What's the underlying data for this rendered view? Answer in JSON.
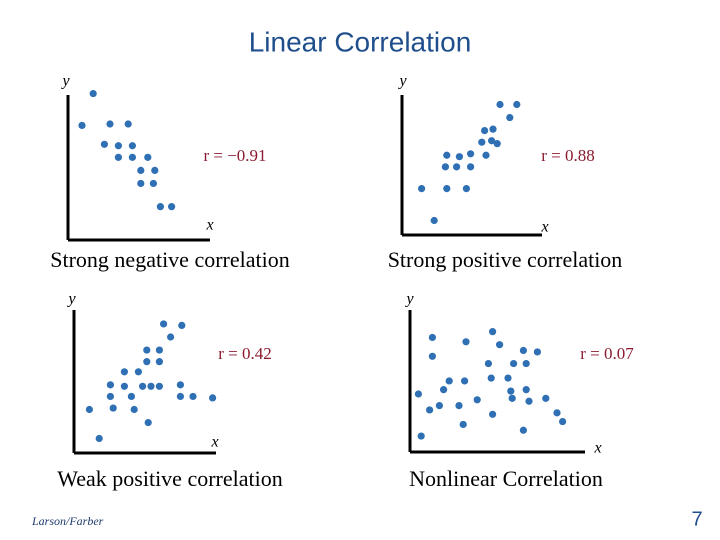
{
  "title": "Linear Correlation",
  "footer": "Larson/Farber",
  "page_number": "7",
  "chart_data": [
    {
      "type": "scatter",
      "title": "Strong negative correlation",
      "x_label": "x",
      "y_label": "y",
      "annotation": "r = −0.91",
      "color": "#2f6fb3",
      "xlim": [
        0,
        11
      ],
      "ylim": [
        0,
        11
      ],
      "x": [
        1.8,
        1.0,
        3.0,
        4.3,
        2.6,
        3.6,
        4.6,
        3.6,
        4.6,
        5.7,
        5.2,
        6.2,
        5.2,
        6.1,
        6.6,
        7.4
      ],
      "values": [
        10.1,
        7.9,
        8.0,
        8.0,
        6.6,
        6.5,
        6.5,
        5.7,
        5.7,
        5.7,
        4.8,
        4.8,
        3.9,
        3.9,
        2.3,
        2.3
      ]
    },
    {
      "type": "scatter",
      "title": "Strong positive correlation",
      "x_label": "x",
      "y_label": "y",
      "annotation": "r = 0.88",
      "color": "#2f6fb3",
      "xlim": [
        0,
        11
      ],
      "ylim": [
        0,
        11
      ],
      "x": [
        7.0,
        8.2,
        7.7,
        6.5,
        5.9,
        6.4,
        5.7,
        6.8,
        4.9,
        6.0,
        3.2,
        4.1,
        3.1,
        3.9,
        4.9,
        1.4,
        3.2,
        4.6,
        2.3
      ],
      "values": [
        9.0,
        9.0,
        8.1,
        7.3,
        7.2,
        6.5,
        6.4,
        6.3,
        5.6,
        5.5,
        5.5,
        5.4,
        4.7,
        4.7,
        4.7,
        3.2,
        3.2,
        3.2,
        1.0
      ]
    },
    {
      "type": "scatter",
      "title": "Weak positive correlation",
      "x_label": "x",
      "y_label": "y",
      "annotation": "r = 0.42",
      "color": "#2f6fb3",
      "xlim": [
        0,
        11
      ],
      "ylim": [
        0,
        11
      ],
      "x": [
        6.4,
        7.7,
        6.9,
        5.2,
        6.1,
        5.2,
        6.1,
        3.6,
        4.6,
        2.6,
        3.6,
        4.9,
        5.5,
        6.1,
        7.6,
        2.6,
        4.1,
        7.6,
        8.5,
        9.9,
        1.1,
        2.8,
        4.3,
        5.3,
        1.8
      ],
      "values": [
        8.9,
        8.8,
        8.0,
        7.1,
        7.1,
        6.3,
        6.3,
        5.6,
        5.6,
        4.7,
        4.6,
        4.6,
        4.6,
        4.6,
        4.7,
        3.9,
        3.9,
        3.9,
        3.9,
        3.8,
        3.0,
        3.1,
        3.0,
        2.1,
        1.0
      ]
    },
    {
      "type": "scatter",
      "title": "Nonlinear Correlation",
      "x_label": "x",
      "y_label": "y",
      "annotation": "r = 0.07",
      "color": "#2f6fb3",
      "xlim": [
        0,
        11
      ],
      "ylim": [
        0,
        11
      ],
      "x": [
        5.9,
        1.6,
        4.0,
        6.4,
        8.1,
        9.1,
        1.6,
        5.6,
        7.4,
        8.3,
        2.8,
        3.9,
        5.8,
        7.0,
        0.6,
        2.4,
        7.2,
        8.3,
        9.7,
        4.8,
        8.5,
        2.1,
        3.5,
        7.3,
        1.4,
        5.9,
        10.5,
        0.8,
        3.8,
        8.1,
        10.9
      ],
      "values": [
        8.3,
        7.9,
        7.6,
        7.4,
        7.0,
        6.9,
        6.6,
        6.1,
        6.1,
        6.1,
        4.9,
        4.9,
        5.1,
        5.1,
        4.0,
        4.3,
        4.2,
        4.3,
        3.7,
        3.6,
        3.5,
        3.2,
        3.2,
        3.7,
        2.9,
        2.6,
        2.7,
        1.1,
        1.9,
        1.5,
        2.1
      ]
    }
  ]
}
